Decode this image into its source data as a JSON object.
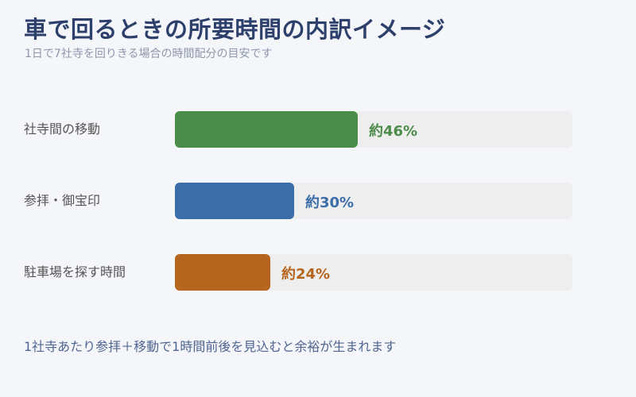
{
  "title": "車で回るときの所要時間の内訳イメージ",
  "subtitle": "1日で7社寺を回りきる場合の時間配分の目安です",
  "note": "1社寺あたり参拝＋移動で1時間前後を見込むと余裕が生まれます",
  "colors": {
    "background": "#f5f6fa",
    "title": "#2d3f6b",
    "track": "#eeeeee",
    "note": "#4f6591"
  },
  "chart_data": {
    "type": "bar",
    "orientation": "horizontal",
    "categories": [
      "社寺間の移動",
      "参拝・御宝印",
      "駐車場を探す時間"
    ],
    "values": [
      46,
      30,
      24
    ],
    "value_labels": [
      "約46%",
      "約30%",
      "約24%"
    ],
    "colors": [
      "#4c8c4a",
      "#3b6ea8",
      "#b5651d"
    ],
    "xlim": [
      0,
      100
    ],
    "unit": "%",
    "grid": false,
    "legend": "none"
  }
}
